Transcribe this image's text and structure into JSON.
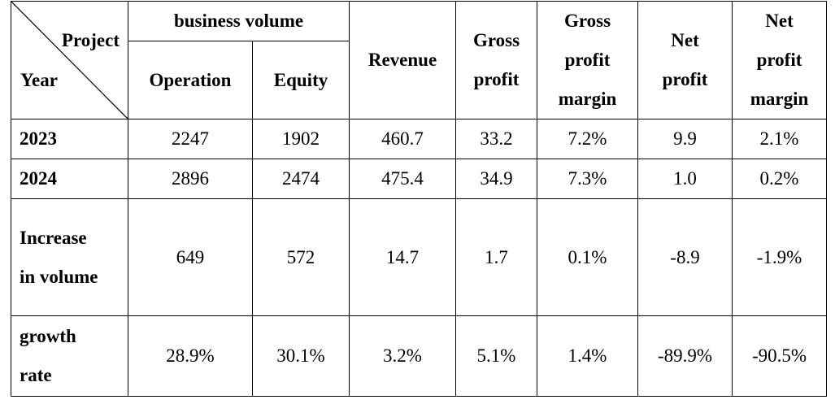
{
  "table": {
    "corner": {
      "top_label": "Project",
      "bottom_label": "Year"
    },
    "group_header": "business volume",
    "headers": {
      "operation": "Operation",
      "equity": "Equity",
      "revenue": "Revenue",
      "gross_profit": [
        "Gross",
        "profit"
      ],
      "gross_profit_margin": [
        "Gross",
        "profit",
        "margin"
      ],
      "net_profit": [
        "Net",
        "profit"
      ],
      "net_profit_margin": [
        "Net",
        "profit",
        "margin"
      ]
    },
    "rows": [
      {
        "label": [
          "2023"
        ],
        "values": [
          "2247",
          "1902",
          "460.7",
          "33.2",
          "7.2%",
          "9.9",
          "2.1%"
        ]
      },
      {
        "label": [
          "2024"
        ],
        "values": [
          "2896",
          "2474",
          "475.4",
          "34.9",
          "7.3%",
          "1.0",
          "0.2%"
        ]
      },
      {
        "label": [
          "Increase",
          "in volume"
        ],
        "values": [
          "649",
          "572",
          "14.7",
          "1.7",
          "0.1%",
          "-8.9",
          "-1.9%"
        ]
      },
      {
        "label": [
          "growth",
          "rate"
        ],
        "values": [
          "28.9%",
          "30.1%",
          "3.2%",
          "5.1%",
          "1.4%",
          "-89.9%",
          "-90.5%"
        ]
      }
    ]
  }
}
